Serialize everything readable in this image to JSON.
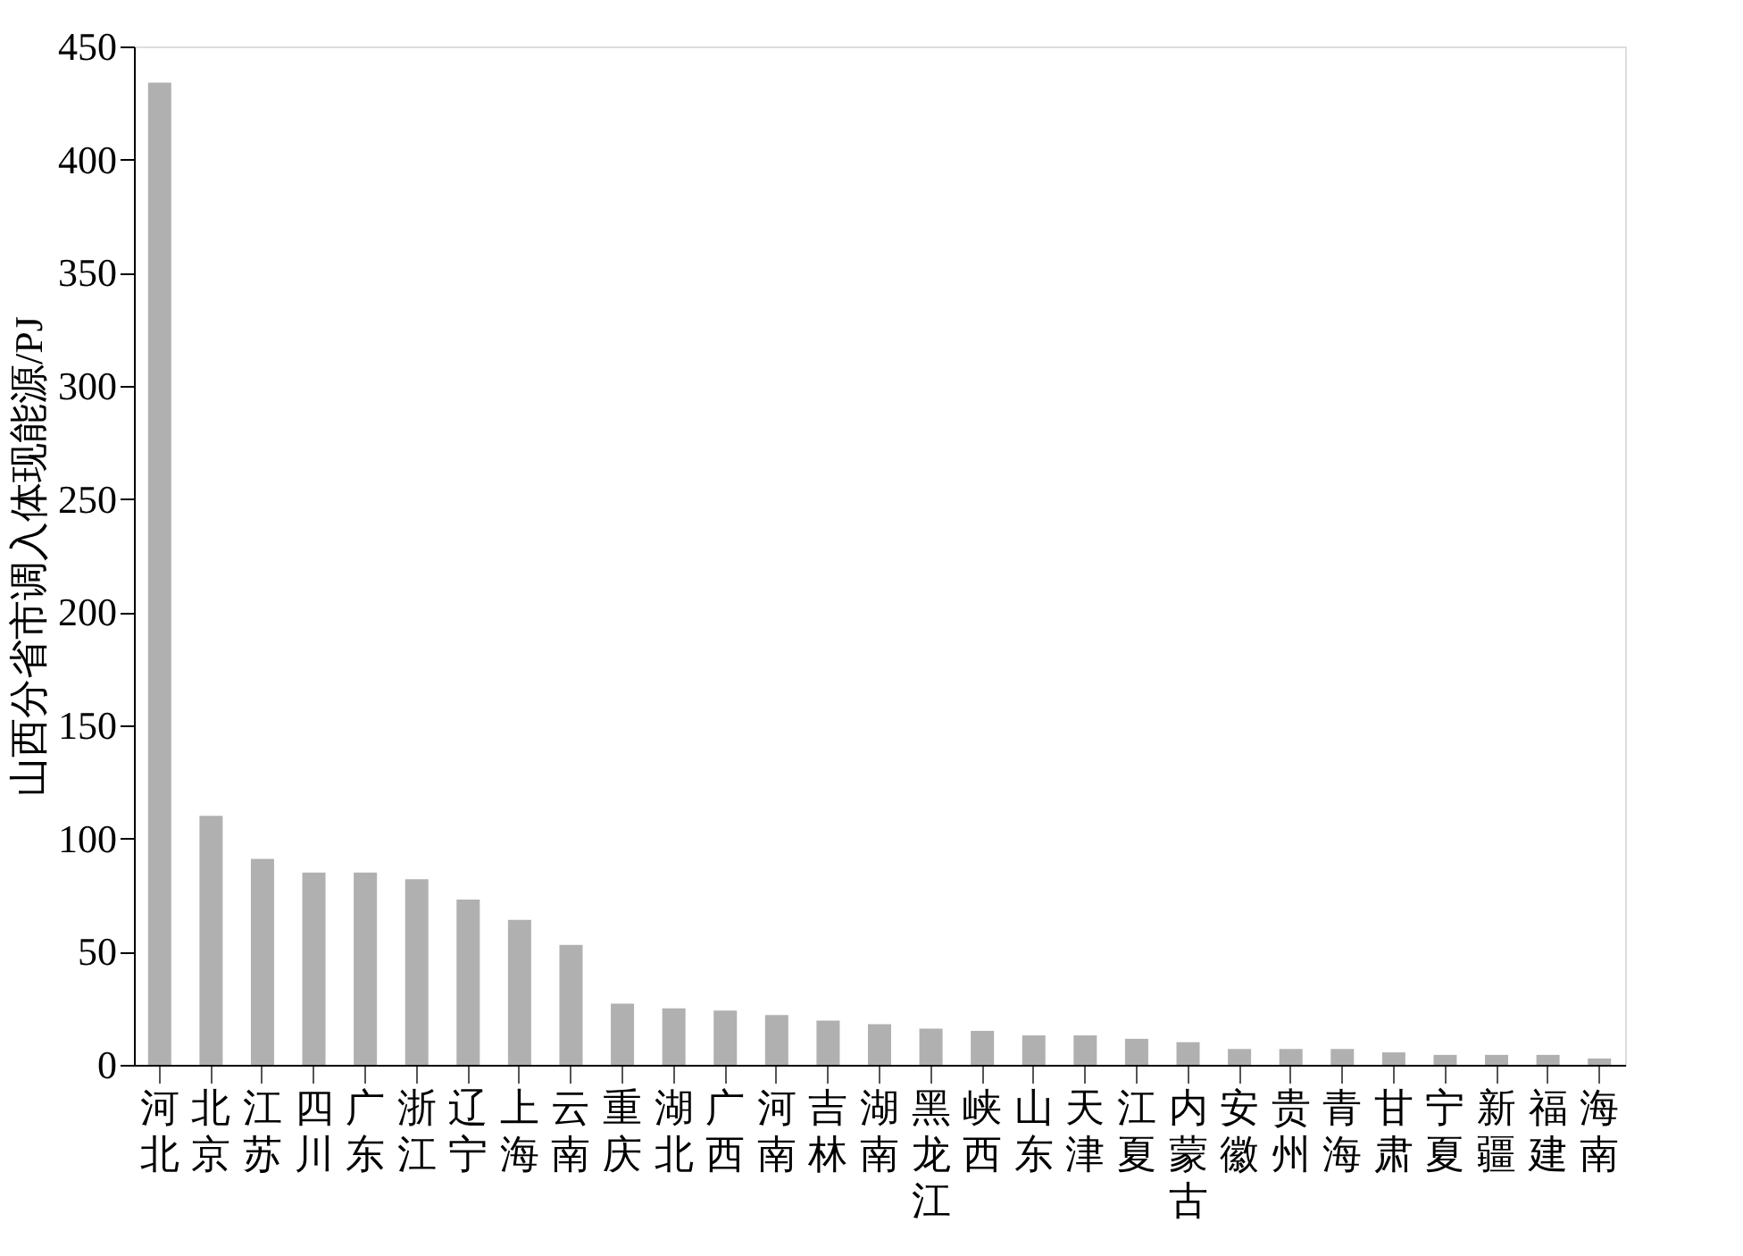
{
  "chart_data": {
    "type": "bar",
    "ylabel": "山西分省市调入体现能源/PJ",
    "categories": [
      "河北",
      "北京",
      "江苏",
      "四川",
      "广东",
      "浙江",
      "辽宁",
      "上海",
      "云南",
      "重庆",
      "湖北",
      "广西",
      "河南",
      "吉林",
      "湖南",
      "黑龙江",
      "峡西",
      "山东",
      "天津",
      "江夏",
      "内蒙古",
      "安徽",
      "贵州",
      "青海",
      "甘肃",
      "宁夏",
      "新疆",
      "福建",
      "海南"
    ],
    "values": [
      434,
      110,
      91,
      85,
      85,
      82,
      73,
      64,
      53,
      27,
      25,
      24,
      22,
      19.5,
      18,
      16,
      15,
      13,
      13,
      11.5,
      10,
      7,
      7,
      7,
      5.5,
      4.4,
      4.4,
      4.4,
      2.8
    ],
    "color": "#b0b0b0",
    "ylim": [
      0,
      450
    ],
    "yticks": [
      0,
      50,
      100,
      150,
      200,
      250,
      300,
      350,
      400,
      450
    ],
    "grid": false
  }
}
